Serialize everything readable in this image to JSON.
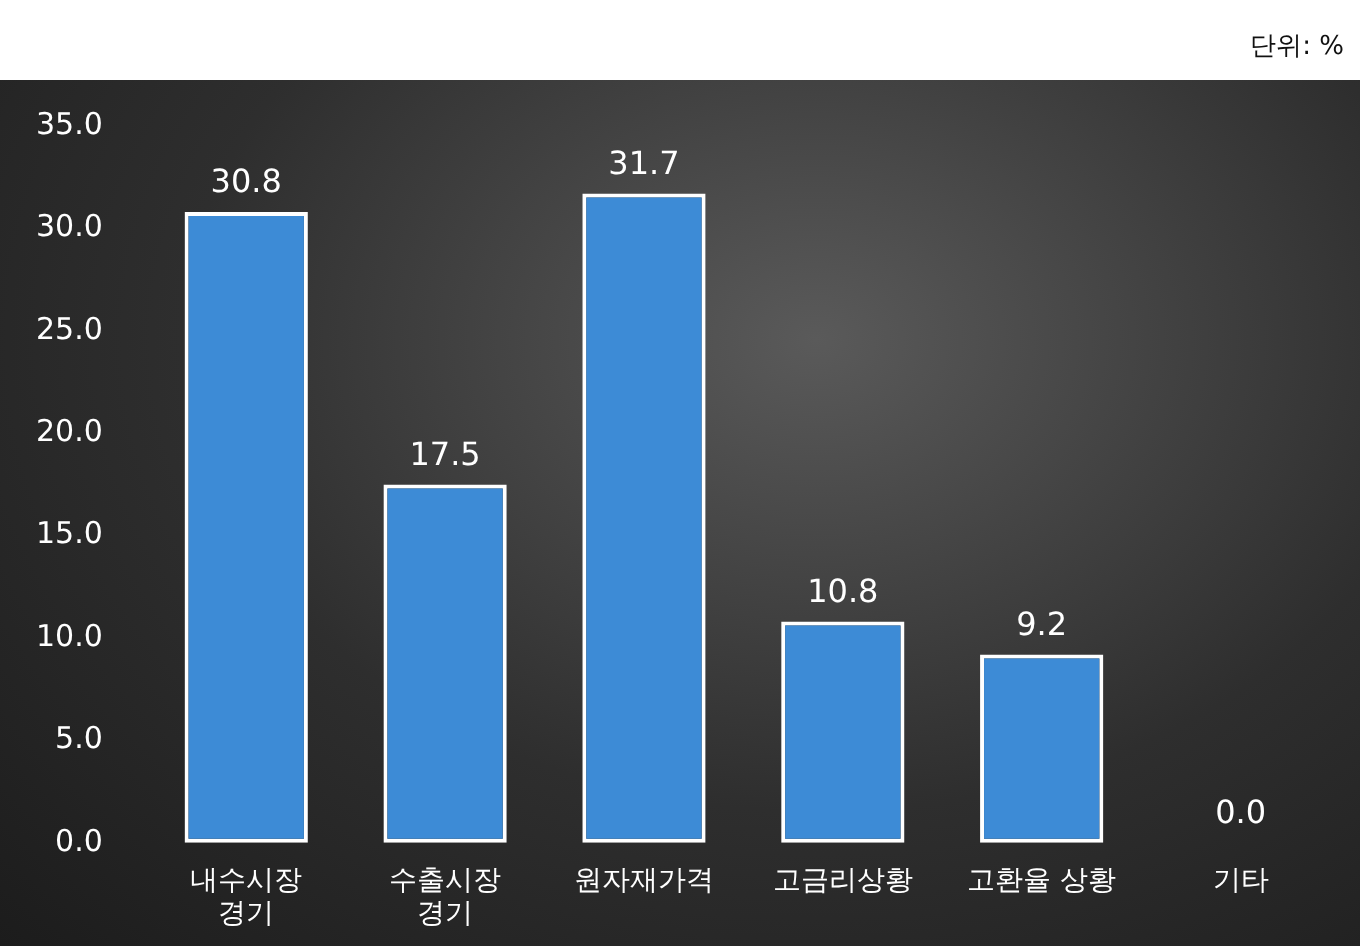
{
  "chart_data": {
    "type": "bar",
    "categories": [
      "내수시장\n경기",
      "수출시장\n경기",
      "원자재가격",
      "고금리상황",
      "고환율 상황",
      "기타"
    ],
    "values": [
      30.8,
      17.5,
      31.7,
      10.8,
      9.2,
      0.0
    ],
    "color": "#3d8bd6",
    "value_labels": [
      "30.8",
      "17.5",
      "31.7",
      "10.8",
      "9.2",
      "0.0"
    ],
    "ylim": [
      0,
      35
    ],
    "yticks": [
      {
        "value": 0,
        "label": "0.0"
      },
      {
        "value": 5,
        "label": "5.0"
      },
      {
        "value": 10,
        "label": "10.0"
      },
      {
        "value": 15,
        "label": "15.0"
      },
      {
        "value": 20,
        "label": "20.0"
      },
      {
        "value": 25,
        "label": "25.0"
      },
      {
        "value": 30,
        "label": "30.0"
      },
      {
        "value": 35,
        "label": "35.0"
      }
    ],
    "grid": false,
    "legend": false,
    "annotations": [
      "단위: %"
    ]
  }
}
